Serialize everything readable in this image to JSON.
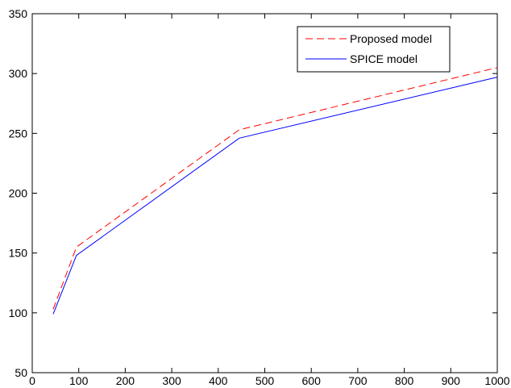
{
  "chart_data": {
    "type": "line",
    "title": "",
    "xlabel": "",
    "ylabel": "",
    "xlim": [
      0,
      1000
    ],
    "ylim": [
      50,
      350
    ],
    "xticks": [
      0,
      100,
      200,
      300,
      400,
      500,
      600,
      700,
      800,
      900,
      1000
    ],
    "yticks": [
      50,
      100,
      150,
      200,
      250,
      300,
      350
    ],
    "grid": false,
    "legend_position": "top-right",
    "series": [
      {
        "name": "Proposed model",
        "style": "dashed",
        "color": "#ff0000",
        "x": [
          45,
          95,
          445,
          1000
        ],
        "y": [
          103,
          155,
          253,
          305
        ]
      },
      {
        "name": "SPICE model",
        "style": "solid",
        "color": "#0000ff",
        "x": [
          45,
          95,
          445,
          1000
        ],
        "y": [
          99,
          148,
          246,
          297
        ]
      }
    ]
  }
}
